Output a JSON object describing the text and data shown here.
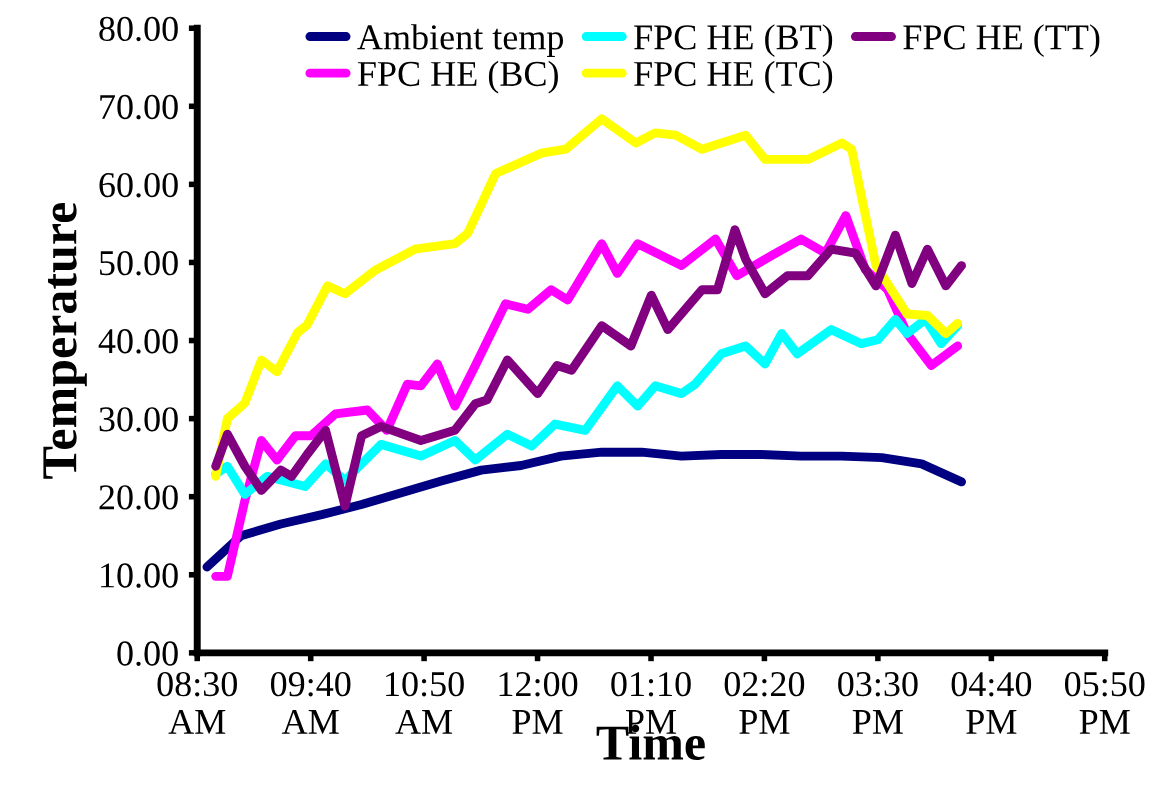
{
  "chart_data": {
    "type": "line",
    "xlabel": "Time",
    "ylabel": "Temperature",
    "xlim": [
      8.5,
      17.833
    ],
    "ylim": [
      0,
      80
    ],
    "xticks": [
      {
        "value": 8.5,
        "label": "08:30\nAM"
      },
      {
        "value": 9.667,
        "label": "09:40\nAM"
      },
      {
        "value": 10.833,
        "label": "10:50\nAM"
      },
      {
        "value": 12.0,
        "label": "12:00\nPM"
      },
      {
        "value": 13.167,
        "label": "01:10\nPM"
      },
      {
        "value": 14.333,
        "label": "02:20\nPM"
      },
      {
        "value": 15.5,
        "label": "03:30\nPM"
      },
      {
        "value": 16.667,
        "label": "04:40\nPM"
      },
      {
        "value": 17.833,
        "label": "05:50\nPM"
      }
    ],
    "yticks": [
      {
        "value": 0,
        "label": "0.00"
      },
      {
        "value": 10,
        "label": "10.00"
      },
      {
        "value": 20,
        "label": "20.00"
      },
      {
        "value": 30,
        "label": "30.00"
      },
      {
        "value": 40,
        "label": "40.00"
      },
      {
        "value": 50,
        "label": "50.00"
      },
      {
        "value": 60,
        "label": "60.00"
      },
      {
        "value": 70,
        "label": "70.00"
      },
      {
        "value": 80,
        "label": "80.00"
      }
    ],
    "grid": false,
    "legend": "top",
    "marker": "none",
    "line_style": "solid",
    "series": [
      {
        "name": "Ambient temp",
        "color": "#000080",
        "x": [
          8.6,
          8.95,
          9.36,
          9.78,
          10.19,
          10.6,
          11.01,
          11.42,
          11.83,
          12.24,
          12.66,
          13.07,
          13.48,
          13.89,
          14.3,
          14.71,
          15.13,
          15.54,
          15.95,
          16.36
        ],
        "values": [
          11,
          15,
          16.5,
          17.7,
          19,
          20.5,
          22,
          23.4,
          24,
          25.2,
          25.7,
          25.7,
          25.2,
          25.4,
          25.4,
          25.2,
          25.2,
          25,
          24.2,
          21.9
        ]
      },
      {
        "name": "FPC HE (BC)",
        "color": "#ff00ff",
        "x": [
          8.69,
          8.81,
          8.99,
          9.16,
          9.32,
          9.51,
          9.67,
          9.92,
          10.25,
          10.45,
          10.66,
          10.8,
          10.97,
          11.15,
          11.36,
          11.67,
          11.9,
          12.14,
          12.31,
          12.66,
          12.82,
          13.03,
          13.48,
          13.83,
          14.05,
          14.41,
          14.71,
          14.96,
          15.17,
          15.37,
          15.6,
          15.8,
          16.05,
          16.32
        ],
        "values": [
          9.8,
          9.8,
          19.5,
          27.2,
          24.7,
          27.8,
          27.8,
          30.6,
          31.1,
          28.5,
          34.4,
          34.2,
          37,
          31.6,
          36.8,
          44.7,
          44,
          46.5,
          45.2,
          52.4,
          48.6,
          52.4,
          49.6,
          53,
          48.3,
          50.9,
          53,
          51.2,
          56,
          49.1,
          46.5,
          40.9,
          36.8,
          39.3
        ]
      },
      {
        "name": "FPC HE (BT)",
        "color": "#00ffff",
        "x": [
          8.69,
          8.81,
          8.99,
          9.22,
          9.61,
          9.82,
          10.02,
          10.39,
          10.8,
          11.15,
          11.36,
          11.69,
          11.94,
          12.18,
          12.49,
          12.82,
          13.03,
          13.21,
          13.48,
          13.62,
          13.89,
          14.14,
          14.34,
          14.51,
          14.67,
          15.02,
          15.33,
          15.5,
          15.68,
          15.8,
          15.99,
          16.15,
          16.32
        ],
        "values": [
          22.9,
          23.9,
          20.3,
          22.6,
          21.3,
          24.2,
          22.1,
          26.7,
          25.2,
          27.2,
          24.7,
          28,
          26.5,
          29.3,
          28.5,
          34.2,
          31.6,
          34.2,
          33.2,
          34.4,
          38.3,
          39.3,
          37,
          40.9,
          38.3,
          41.4,
          39.6,
          40.1,
          42.7,
          40.9,
          42.7,
          39.6,
          41.9
        ]
      },
      {
        "name": "FPC HE (TC)",
        "color": "#ffff00",
        "x": [
          8.69,
          8.81,
          8.99,
          9.16,
          9.32,
          9.53,
          9.63,
          9.84,
          10.02,
          10.33,
          10.74,
          11.15,
          11.28,
          11.57,
          11.77,
          12.04,
          12.29,
          12.66,
          13.01,
          13.21,
          13.42,
          13.69,
          14.14,
          14.34,
          14.78,
          15.13,
          15.23,
          15.48,
          15.8,
          16.01,
          16.2,
          16.32
        ],
        "values": [
          22.6,
          30,
          32,
          37.5,
          36,
          41,
          42,
          47,
          46,
          49,
          51.7,
          52.4,
          53.7,
          61.4,
          62.5,
          64,
          64.5,
          68.4,
          65.3,
          66.6,
          66.3,
          64.5,
          66.3,
          63.2,
          63.2,
          65.3,
          64.5,
          49.6,
          43.4,
          43.2,
          40.9,
          42.2
        ]
      },
      {
        "name": "FPC HE (TT)",
        "color": "#800080",
        "x": [
          8.69,
          8.81,
          8.99,
          9.16,
          9.36,
          9.47,
          9.63,
          9.82,
          10.02,
          10.19,
          10.39,
          10.8,
          11.15,
          11.36,
          11.48,
          11.69,
          12.0,
          12.2,
          12.35,
          12.66,
          12.96,
          13.17,
          13.34,
          13.69,
          13.85,
          14.03,
          14.14,
          14.34,
          14.57,
          14.78,
          15.02,
          15.27,
          15.48,
          15.68,
          15.85,
          16.01,
          16.2,
          16.36
        ],
        "values": [
          23.9,
          28,
          23.9,
          20.8,
          23.4,
          22.6,
          25.4,
          28.5,
          18.8,
          27.8,
          29,
          27.2,
          28.5,
          31.9,
          32.4,
          37.5,
          33.2,
          36.8,
          36.2,
          41.9,
          39.3,
          45.8,
          41.4,
          46.5,
          46.5,
          54.2,
          50.4,
          46,
          48.3,
          48.3,
          51.7,
          51.2,
          47,
          53.5,
          47.3,
          51.7,
          47,
          49.6
        ]
      }
    ]
  }
}
